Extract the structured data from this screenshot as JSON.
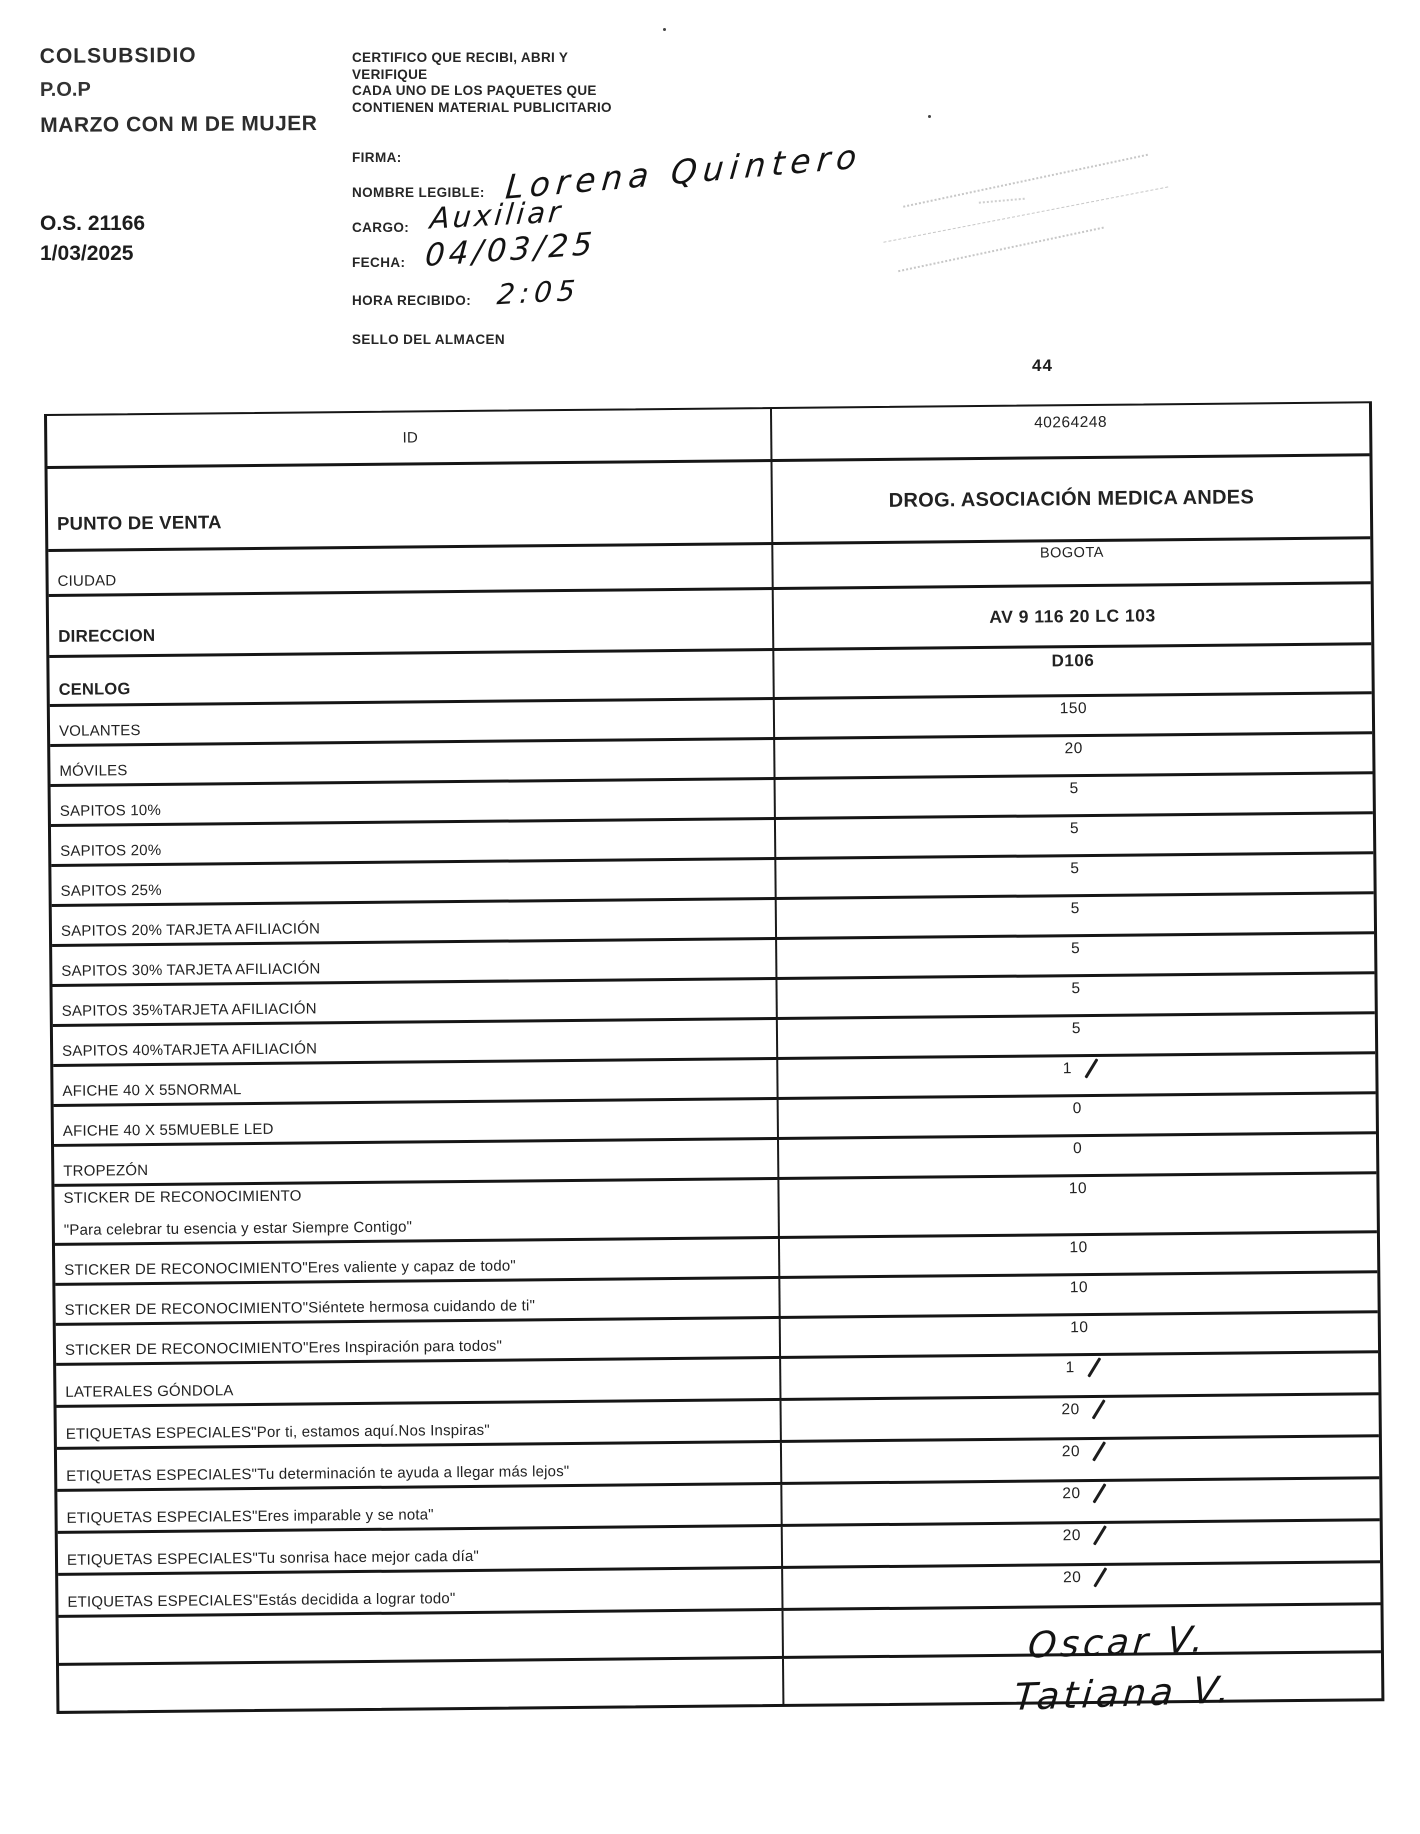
{
  "doc": {
    "org": "COLSUBSIDIO",
    "program": "P.O.P",
    "campaign": "MARZO CON M DE MUJER",
    "order_number": "O.S. 21166",
    "order_date": "1/03/2025",
    "certification_lines": [
      "CERTIFICO QUE RECIBI, ABRI Y",
      "VERIFIQUE",
      "CADA UNO DE LOS PAQUETES QUE",
      "CONTIENEN MATERIAL PUBLICITARIO"
    ],
    "fields": {
      "firma_label": "FIRMA:",
      "nombre_label": "NOMBRE LEGIBLE:",
      "nombre_value": "Lorena Quintero",
      "cargo_label": "CARGO:",
      "cargo_value": "Auxiliar",
      "fecha_label": "FECHA:",
      "fecha_value": "04/03/25",
      "hora_label": "HORA RECIBIDO:",
      "hora_value": "2:05",
      "sello_label": "SELLO DEL ALMACEN"
    },
    "page_number": "44",
    "table": {
      "rows": [
        {
          "kind": "id",
          "label": "ID",
          "value": "40264248"
        },
        {
          "kind": "pdv",
          "label": "PUNTO DE VENTA",
          "value": "DROG. ASOCIACIÓN MEDICA ANDES"
        },
        {
          "kind": "ciudad",
          "label": "CIUDAD",
          "value": "BOGOTA"
        },
        {
          "kind": "direccion",
          "label": "DIRECCION",
          "value": "AV 9 116 20 LC 103"
        },
        {
          "kind": "cenlog",
          "label": "CENLOG",
          "value": "D106"
        },
        {
          "kind": "item",
          "label": "VOLANTES",
          "value": "150"
        },
        {
          "kind": "item",
          "label": "MÓVILES",
          "value": "20"
        },
        {
          "kind": "item",
          "label": "SAPITOS 10%",
          "value": "5"
        },
        {
          "kind": "item",
          "label": "SAPITOS 20%",
          "value": "5"
        },
        {
          "kind": "item",
          "label": "SAPITOS 25%",
          "value": "5"
        },
        {
          "kind": "item",
          "label": "SAPITOS 20% TARJETA AFILIACIÓN",
          "value": "5"
        },
        {
          "kind": "item",
          "label": "SAPITOS 30% TARJETA AFILIACIÓN",
          "value": "5"
        },
        {
          "kind": "item",
          "label": "SAPITOS 35%TARJETA AFILIACIÓN",
          "value": "5"
        },
        {
          "kind": "item",
          "label": "SAPITOS 40%TARJETA AFILIACIÓN",
          "value": "5"
        },
        {
          "kind": "item",
          "label": "AFICHE 40 X 55NORMAL",
          "value": "1",
          "checked": true
        },
        {
          "kind": "item",
          "label": "AFICHE 40 X 55MUEBLE LED",
          "value": "0"
        },
        {
          "kind": "item",
          "label": "TROPEZÓN",
          "value": "0"
        },
        {
          "kind": "item2",
          "label": "STICKER DE RECONOCIMIENTO",
          "label2": "\"Para celebrar tu esencia y estar Siempre Contigo\"",
          "value": "10"
        },
        {
          "kind": "item",
          "label": "STICKER DE RECONOCIMIENTO\"Eres valiente y capaz de todo\"",
          "value": "10"
        },
        {
          "kind": "item",
          "label": "STICKER DE RECONOCIMIENTO\"Siéntete hermosa cuidando de ti\"",
          "value": "10"
        },
        {
          "kind": "item",
          "label": "STICKER DE RECONOCIMIENTO\"Eres Inspiración para todos\"",
          "value": "10"
        },
        {
          "kind": "etiqueta",
          "label": "LATERALES GÓNDOLA",
          "value": "1",
          "checked": true
        },
        {
          "kind": "etiqueta",
          "label": "ETIQUETAS ESPECIALES\"Por ti, estamos aquí.Nos Inspiras\"",
          "value": "20",
          "checked": true
        },
        {
          "kind": "etiqueta",
          "label": "ETIQUETAS ESPECIALES\"Tu determinación te ayuda a llegar más lejos\"",
          "value": "20",
          "checked": true
        },
        {
          "kind": "etiqueta",
          "label": "ETIQUETAS ESPECIALES\"Eres imparable y se nota\"",
          "value": "20",
          "checked": true
        },
        {
          "kind": "etiqueta",
          "label": "ETIQUETAS ESPECIALES\"Tu sonrisa hace mejor cada día\"",
          "value": "20",
          "checked": true
        },
        {
          "kind": "etiqueta",
          "label": "ETIQUETAS ESPECIALES\"Estás decidida a lograr todo\"",
          "value": "20",
          "checked": true
        },
        {
          "kind": "empty",
          "label": "",
          "value": ""
        },
        {
          "kind": "empty",
          "label": "",
          "value": ""
        }
      ]
    },
    "signatures": [
      "Oscar V.",
      "Tatiana V."
    ]
  }
}
